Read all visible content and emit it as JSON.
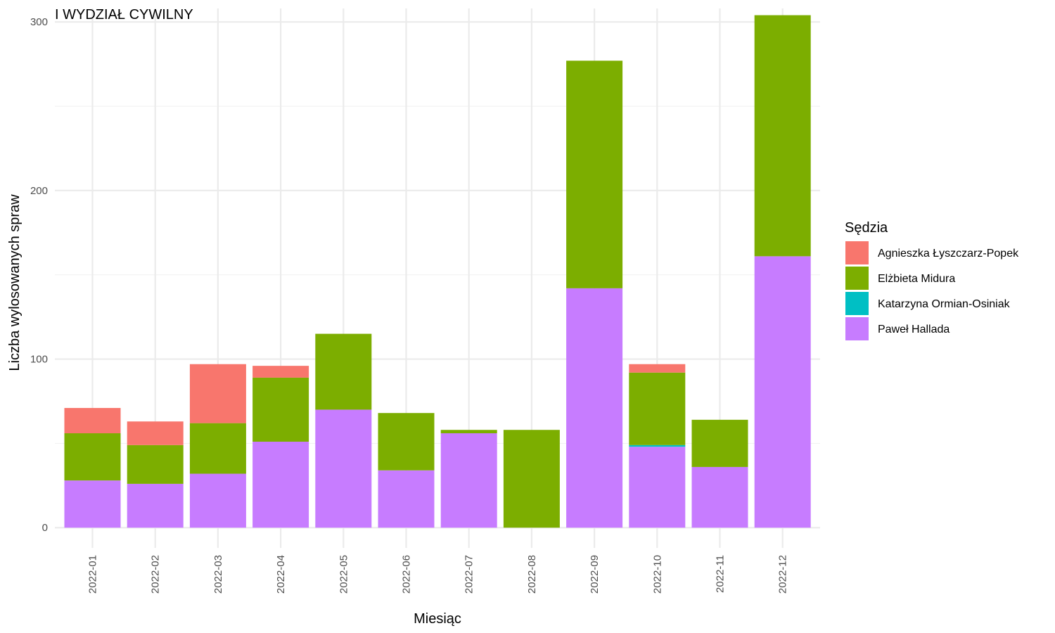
{
  "chart_data": {
    "type": "bar",
    "stacked": true,
    "title": "I WYDZIAŁ CYWILNY",
    "xlabel": "Miesiąc",
    "ylabel": "Liczba wylosowanych spraw",
    "ylim": [
      -12,
      308
    ],
    "yticks": [
      0,
      100,
      200,
      300
    ],
    "grid": true,
    "legend": {
      "title": "Sędzia",
      "position": "right"
    },
    "categories": [
      "2022-01",
      "2022-02",
      "2022-03",
      "2022-04",
      "2022-05",
      "2022-06",
      "2022-07",
      "2022-08",
      "2022-09",
      "2022-10",
      "2022-11",
      "2022-12"
    ],
    "series": [
      {
        "name": "Paweł Hallada",
        "color": "#C77CFF",
        "values": [
          28,
          26,
          32,
          51,
          70,
          34,
          56,
          0,
          142,
          48,
          36,
          161
        ]
      },
      {
        "name": "Katarzyna Ormian-Osiniak",
        "color": "#00BFC4",
        "values": [
          0,
          0,
          0,
          0,
          0,
          0,
          0,
          0,
          0,
          1,
          0,
          0
        ]
      },
      {
        "name": "Elżbieta Midura",
        "color": "#7CAE00",
        "values": [
          28,
          23,
          30,
          38,
          45,
          34,
          2,
          58,
          135,
          43,
          28,
          143
        ]
      },
      {
        "name": "Agnieszka Łyszczarz-Popek",
        "color": "#F8766D",
        "values": [
          15,
          14,
          35,
          7,
          0,
          0,
          0,
          0,
          0,
          5,
          0,
          0
        ]
      }
    ],
    "legend_order": [
      "Agnieszka Łyszczarz-Popek",
      "Elżbieta Midura",
      "Katarzyna Ormian-Osiniak",
      "Paweł Hallada"
    ]
  }
}
